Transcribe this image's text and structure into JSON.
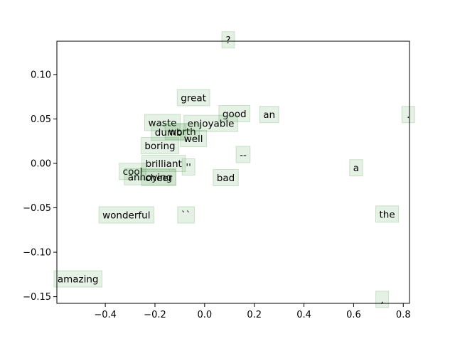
{
  "chart_data": {
    "type": "scatter",
    "title": "",
    "xlabel": "",
    "ylabel": "",
    "xlim": [
      -0.595,
      0.825
    ],
    "ylim": [
      -0.1575,
      0.1375
    ],
    "x_ticks": [
      -0.4,
      -0.2,
      0.0,
      0.2,
      0.4,
      0.6,
      0.8
    ],
    "x_tick_labels": [
      "−0.4",
      "−0.2",
      "0.0",
      "0.2",
      "0.4",
      "0.6",
      "0.8"
    ],
    "y_ticks": [
      -0.15,
      -0.1,
      -0.05,
      0.0,
      0.05,
      0.1
    ],
    "y_tick_labels": [
      "−0.15",
      "−0.10",
      "−0.05",
      "0.00",
      "0.05",
      "0.10"
    ],
    "grid": false,
    "label_box_color": "#2e8b2e",
    "points": [
      {
        "label": "?",
        "x": 0.095,
        "y": 0.139
      },
      {
        "label": "great",
        "x": -0.045,
        "y": 0.074
      },
      {
        "label": "good",
        "x": 0.12,
        "y": 0.056
      },
      {
        "label": "an",
        "x": 0.26,
        "y": 0.055
      },
      {
        "label": ".",
        "x": 0.82,
        "y": 0.055
      },
      {
        "label": "waste",
        "x": -0.17,
        "y": 0.046
      },
      {
        "label": "enjoyable",
        "x": 0.025,
        "y": 0.045
      },
      {
        "label": "dumb",
        "x": -0.145,
        "y": 0.035
      },
      {
        "label": "worth",
        "x": -0.09,
        "y": 0.036
      },
      {
        "label": "well",
        "x": -0.045,
        "y": 0.028
      },
      {
        "label": "boring",
        "x": -0.18,
        "y": 0.02
      },
      {
        "label": "--",
        "x": 0.155,
        "y": 0.01
      },
      {
        "label": "brilliant",
        "x": -0.165,
        "y": 0.0
      },
      {
        "label": "''",
        "x": -0.065,
        "y": -0.004
      },
      {
        "label": "a",
        "x": 0.61,
        "y": -0.005
      },
      {
        "label": "cool",
        "x": -0.29,
        "y": -0.009
      },
      {
        "label": "annoying",
        "x": -0.22,
        "y": -0.015
      },
      {
        "label": "cheer",
        "x": -0.185,
        "y": -0.016
      },
      {
        "label": "bad",
        "x": 0.085,
        "y": -0.016
      },
      {
        "label": "wonderful",
        "x": -0.315,
        "y": -0.058
      },
      {
        "label": "``",
        "x": -0.075,
        "y": -0.058
      },
      {
        "label": "the",
        "x": 0.735,
        "y": -0.057
      },
      {
        "label": "amazing",
        "x": -0.51,
        "y": -0.13
      },
      {
        "label": ",",
        "x": 0.715,
        "y": -0.153
      }
    ]
  }
}
